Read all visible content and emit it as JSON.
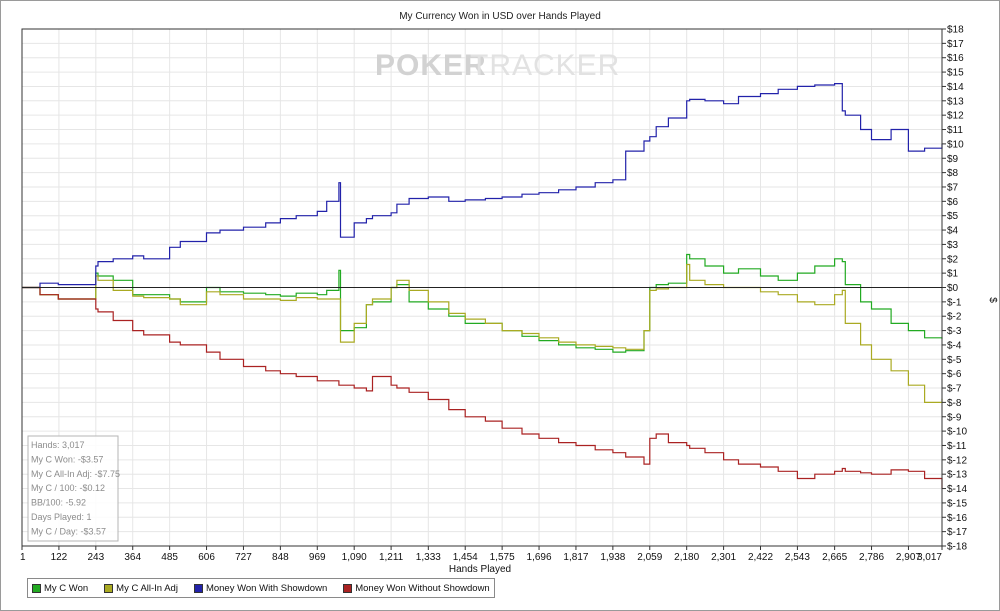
{
  "chart_data": {
    "type": "line",
    "title": "My Currency Won in USD over Hands Played",
    "xlabel": "Hands Played",
    "ylabel": "$",
    "xlim": [
      1,
      3017
    ],
    "ylim": [
      -18,
      18
    ],
    "x_ticks": [
      "1",
      "122",
      "243",
      "364",
      "485",
      "606",
      "727",
      "848",
      "969",
      "1,090",
      "1,211",
      "1,333",
      "1,454",
      "1,575",
      "1,696",
      "1,817",
      "1,938",
      "2,059",
      "2,180",
      "2,301",
      "2,422",
      "2,543",
      "2,665",
      "2,786",
      "2,907",
      "3,017"
    ],
    "x_tick_values": [
      1,
      122,
      243,
      364,
      485,
      606,
      727,
      848,
      969,
      1090,
      1211,
      1333,
      1454,
      1575,
      1696,
      1817,
      1938,
      2059,
      2180,
      2301,
      2422,
      2543,
      2665,
      2786,
      2907,
      3017
    ],
    "y_ticks": [
      "$18",
      "$17",
      "$16",
      "$15",
      "$14",
      "$13",
      "$12",
      "$11",
      "$10",
      "$9",
      "$8",
      "$7",
      "$6",
      "$5",
      "$4",
      "$3",
      "$2",
      "$1",
      "$0",
      "$-1",
      "$-2",
      "$-3",
      "$-4",
      "$-5",
      "$-6",
      "$-7",
      "$-8",
      "$-9",
      "$-10",
      "$-11",
      "$-12",
      "$-13",
      "$-14",
      "$-15",
      "$-16",
      "$-17",
      "$-18"
    ],
    "y_tick_values": [
      18,
      17,
      16,
      15,
      14,
      13,
      12,
      11,
      10,
      9,
      8,
      7,
      6,
      5,
      4,
      3,
      2,
      1,
      0,
      -1,
      -2,
      -3,
      -4,
      -5,
      -6,
      -7,
      -8,
      -9,
      -10,
      -11,
      -12,
      -13,
      -14,
      -15,
      -16,
      -17,
      -18
    ],
    "grid": true,
    "watermark": "POKERTRACKER",
    "stats": [
      "Hands: 3,017",
      "My C Won: -$3.57",
      "My C All-In Adj: -$7.75",
      "My C / 100: -$0.12",
      "BB/100: -5.92",
      "Days Played: 1",
      "My C / Day: -$3.57"
    ],
    "series": [
      {
        "name": "My C Won",
        "color": "#22aa22",
        "x": [
          1,
          60,
          120,
          243,
          250,
          300,
          364,
          400,
          485,
          520,
          606,
          650,
          727,
          800,
          848,
          900,
          969,
          1000,
          1040,
          1045,
          1090,
          1130,
          1150,
          1211,
          1230,
          1270,
          1333,
          1400,
          1454,
          1520,
          1575,
          1640,
          1696,
          1760,
          1817,
          1880,
          1938,
          1980,
          2040,
          2059,
          2080,
          2120,
          2180,
          2190,
          2240,
          2301,
          2350,
          2422,
          2480,
          2543,
          2600,
          2665,
          2690,
          2700,
          2750,
          2786,
          2850,
          2907,
          2960,
          3017
        ],
        "y": [
          0,
          -0.5,
          -0.8,
          1,
          0.8,
          0.5,
          -0.5,
          -0.5,
          -0.8,
          -1,
          0,
          -0.3,
          -0.4,
          -0.5,
          -0.6,
          -0.4,
          -0.5,
          -0.2,
          1.2,
          -3,
          -2.8,
          -1.2,
          -1.0,
          0,
          0.2,
          -1.0,
          -1.5,
          -2.0,
          -2.5,
          -2.5,
          -3.0,
          -3.4,
          -3.7,
          -4.0,
          -4.2,
          -4.3,
          -4.5,
          -4.4,
          -3.0,
          0,
          0.2,
          0.3,
          2.3,
          2.0,
          1.5,
          1.0,
          1.3,
          0.8,
          0.5,
          1.0,
          1.5,
          2.0,
          1.8,
          0.2,
          -1.0,
          -1.5,
          -2.5,
          -3.0,
          -3.5,
          -3.57
        ]
      },
      {
        "name": "My C All-In Adj",
        "color": "#aaaa22",
        "x": [
          1,
          60,
          120,
          243,
          250,
          300,
          364,
          400,
          485,
          520,
          606,
          650,
          727,
          800,
          848,
          900,
          969,
          1000,
          1040,
          1045,
          1090,
          1130,
          1150,
          1211,
          1230,
          1270,
          1333,
          1400,
          1454,
          1520,
          1575,
          1640,
          1696,
          1760,
          1817,
          1880,
          1938,
          1980,
          2040,
          2059,
          2080,
          2120,
          2180,
          2190,
          2240,
          2301,
          2350,
          2422,
          2480,
          2543,
          2600,
          2665,
          2690,
          2700,
          2750,
          2786,
          2850,
          2907,
          2960,
          3017
        ],
        "y": [
          0,
          -0.5,
          -0.8,
          0.8,
          0.5,
          -0.2,
          -0.6,
          -0.7,
          -0.8,
          -1.2,
          -0.3,
          -0.5,
          -0.8,
          -0.8,
          -0.9,
          -0.7,
          -0.8,
          -0.8,
          -0.8,
          -3.8,
          -2.5,
          -1.2,
          -0.8,
          0,
          0.5,
          -0.2,
          -1.0,
          -1.8,
          -2.2,
          -2.5,
          -3.0,
          -3.2,
          -3.5,
          -3.8,
          -4.0,
          -4.1,
          -4.2,
          -4.3,
          -3.0,
          -0.2,
          -0.1,
          0,
          1.6,
          0.5,
          0.2,
          0,
          0,
          -0.3,
          -0.5,
          -1.0,
          -1.2,
          -0.5,
          -0.2,
          -2.5,
          -4.0,
          -5.0,
          -5.8,
          -6.8,
          -8.0,
          -7.75
        ]
      },
      {
        "name": "Money Won With Showdown",
        "color": "#2222aa",
        "x": [
          1,
          60,
          120,
          243,
          250,
          300,
          364,
          400,
          485,
          520,
          606,
          650,
          727,
          800,
          848,
          900,
          969,
          1000,
          1040,
          1045,
          1090,
          1130,
          1150,
          1211,
          1230,
          1270,
          1333,
          1400,
          1454,
          1520,
          1575,
          1640,
          1696,
          1760,
          1817,
          1880,
          1938,
          1980,
          2040,
          2059,
          2080,
          2120,
          2180,
          2190,
          2240,
          2301,
          2350,
          2422,
          2480,
          2543,
          2600,
          2665,
          2690,
          2700,
          2750,
          2786,
          2850,
          2907,
          2960,
          3017
        ],
        "y": [
          0,
          0.3,
          0.2,
          1.5,
          1.8,
          2.0,
          2.2,
          2.0,
          2.8,
          3.2,
          3.8,
          4.0,
          4.2,
          4.5,
          4.8,
          5.0,
          5.3,
          6.0,
          7.3,
          3.5,
          4.5,
          4.8,
          5.0,
          5.2,
          5.8,
          6.2,
          6.3,
          6.0,
          6.1,
          6.2,
          6.3,
          6.5,
          6.6,
          6.8,
          7.0,
          7.3,
          7.5,
          9.5,
          10.2,
          10.5,
          11.2,
          11.8,
          13.0,
          13.1,
          13.0,
          12.8,
          13.3,
          13.5,
          13.8,
          14.0,
          14.1,
          14.2,
          12.3,
          12.0,
          11.0,
          10.3,
          11.0,
          9.5,
          9.7,
          10.0
        ]
      },
      {
        "name": "Money Won Without Showdown",
        "color": "#aa2222",
        "x": [
          1,
          60,
          120,
          243,
          250,
          300,
          364,
          400,
          485,
          520,
          606,
          650,
          727,
          800,
          848,
          900,
          969,
          1000,
          1040,
          1045,
          1090,
          1130,
          1150,
          1211,
          1230,
          1270,
          1333,
          1400,
          1454,
          1520,
          1575,
          1640,
          1696,
          1760,
          1817,
          1880,
          1938,
          1980,
          2040,
          2059,
          2080,
          2120,
          2180,
          2190,
          2240,
          2301,
          2350,
          2422,
          2480,
          2543,
          2600,
          2665,
          2690,
          2700,
          2750,
          2786,
          2850,
          2907,
          2960,
          3017
        ],
        "y": [
          0,
          -0.5,
          -0.8,
          -1.5,
          -1.7,
          -2.3,
          -3.0,
          -3.3,
          -3.8,
          -4.0,
          -4.5,
          -5.0,
          -5.5,
          -5.8,
          -6.0,
          -6.2,
          -6.5,
          -6.5,
          -6.8,
          -6.8,
          -7.0,
          -7.2,
          -6.2,
          -6.8,
          -7.0,
          -7.3,
          -7.8,
          -8.5,
          -9.0,
          -9.3,
          -9.8,
          -10.2,
          -10.5,
          -10.8,
          -11.0,
          -11.3,
          -11.5,
          -11.8,
          -12.3,
          -10.5,
          -10.2,
          -10.8,
          -11.0,
          -11.2,
          -11.5,
          -12.0,
          -12.3,
          -12.5,
          -12.8,
          -13.3,
          -13.0,
          -12.8,
          -12.6,
          -12.8,
          -12.9,
          -13.0,
          -12.7,
          -12.8,
          -13.3,
          -14.0
        ]
      }
    ]
  }
}
